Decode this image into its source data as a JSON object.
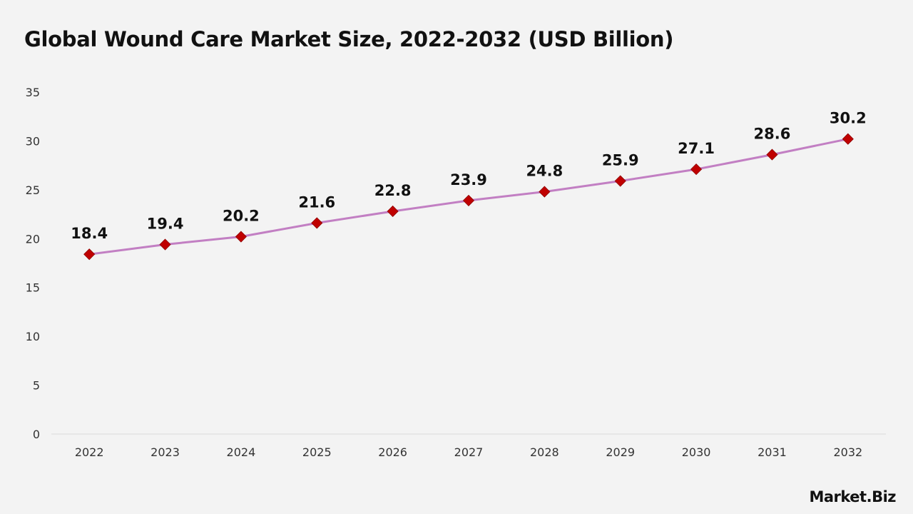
{
  "chart_data": {
    "type": "line",
    "title": "Global Wound Care Market Size, 2022-2032 (USD Billion)",
    "xlabel": "",
    "ylabel": "",
    "categories": [
      "2022",
      "2023",
      "2024",
      "2025",
      "2026",
      "2027",
      "2028",
      "2029",
      "2030",
      "2031",
      "2032"
    ],
    "series": [
      {
        "values": [
          18.4,
          19.4,
          20.2,
          21.6,
          22.8,
          23.9,
          24.8,
          25.9,
          27.1,
          28.6,
          30.2
        ],
        "line_color": "#c27fc3",
        "marker_color": "#c00000",
        "marker": "diamond"
      }
    ],
    "ylim": [
      0,
      35
    ],
    "yticks": [
      0,
      5,
      10,
      15,
      20,
      25,
      30,
      35
    ],
    "grid": false,
    "legend": "none",
    "data_labels": true
  },
  "brand": {
    "name": "Market.Biz"
  },
  "colors": {
    "background": "#f3f3f3",
    "axis": "#d9d9d9",
    "text": "#111111"
  }
}
